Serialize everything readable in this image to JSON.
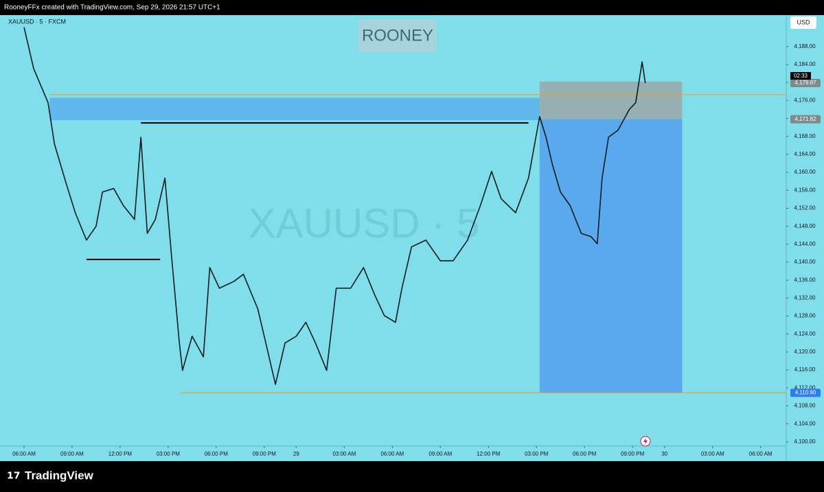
{
  "header": {
    "title": "RooneyFFx created with TradingView.com, Sep 29, 2026 21:57 UTC+1",
    "symbol": "XAUUSD · 5 · FXCM",
    "badge": "ROONEY",
    "watermark": "XAUUSD · 5",
    "currency": "USD",
    "logo": "TradingView"
  },
  "chart_data": {
    "type": "line",
    "color": "#0b1a1c",
    "x": [
      0,
      0.6,
      1.5,
      1.9,
      2.6,
      3.2,
      3.9,
      4.5,
      4.9,
      5.6,
      6.2,
      6.9,
      7.3,
      7.7,
      8.2,
      8.8,
      9.2,
      9.7,
      9.9,
      10.5,
      11.2,
      11.6,
      12.2,
      13.1,
      13.7,
      14.6,
      15.0,
      15.7,
      16.3,
      17.0,
      17.6,
      18.2,
      18.9,
      19.5,
      20.4,
      21.2,
      21.9,
      22.5,
      23.2,
      23.6,
      24.2,
      25.1,
      26.0,
      26.8,
      27.7,
      28.5,
      29.2,
      29.8,
      30.7,
      31.5,
      32.2,
      32.6,
      33.0,
      33.5,
      34.1,
      34.8,
      35.4,
      35.8,
      36.1,
      36.5,
      37.1,
      37.8,
      38.2,
      38.6,
      38.8
    ],
    "values": [
      4192.3,
      4183.1,
      4175.5,
      4166.3,
      4157.9,
      4151.0,
      4144.9,
      4148.0,
      4155.6,
      4156.4,
      4152.6,
      4149.5,
      4167.8,
      4146.4,
      4149.5,
      4158.7,
      4141.9,
      4122.0,
      4115.9,
      4123.5,
      4118.9,
      4138.8,
      4134.2,
      4135.7,
      4137.3,
      4129.6,
      4123.5,
      4112.8,
      4122.0,
      4123.5,
      4126.6,
      4122.0,
      4115.9,
      4134.2,
      4134.2,
      4138.8,
      4132.7,
      4128.1,
      4126.6,
      4134.2,
      4143.4,
      4144.9,
      4140.3,
      4140.3,
      4144.9,
      4152.6,
      4160.2,
      4154.1,
      4151.0,
      4158.7,
      4172.4,
      4167.8,
      4161.7,
      4155.6,
      4152.6,
      4146.4,
      4145.7,
      4144.1,
      4158.7,
      4167.8,
      4169.4,
      4174.0,
      4175.5,
      4184.6,
      4179.87
    ],
    "xlim": [
      -1.5,
      47.6
    ],
    "ylim": [
      4095.7,
      4195
    ],
    "xticks": [
      {
        "value": 0,
        "label": "06:00 AM"
      },
      {
        "value": 3,
        "label": "09:00 AM"
      },
      {
        "value": 6,
        "label": "12:00 PM"
      },
      {
        "value": 9,
        "label": "03:00 PM"
      },
      {
        "value": 12,
        "label": "06:00 PM"
      },
      {
        "value": 15,
        "label": "09:00 PM"
      },
      {
        "value": 17,
        "label": "29"
      },
      {
        "value": 20,
        "label": "03:00 AM"
      },
      {
        "value": 23,
        "label": "06:00 AM"
      },
      {
        "value": 26,
        "label": "09:00 AM"
      },
      {
        "value": 29,
        "label": "12:00 PM"
      },
      {
        "value": 32,
        "label": "03:00 PM"
      },
      {
        "value": 35,
        "label": "06:00 PM"
      },
      {
        "value": 38,
        "label": "09:00 PM"
      },
      {
        "value": 40,
        "label": "30"
      },
      {
        "value": 43,
        "label": "03:00 AM"
      },
      {
        "value": 46,
        "label": "06:00 AM"
      }
    ],
    "yticks": [
      {
        "value": 4100,
        "label": "4,100.00"
      },
      {
        "value": 4104,
        "label": "4,104.00"
      },
      {
        "value": 4108,
        "label": "4,108.00"
      },
      {
        "value": 4112,
        "label": "4,112.00"
      },
      {
        "value": 4116,
        "label": "4,116.00"
      },
      {
        "value": 4120,
        "label": "4,120.00"
      },
      {
        "value": 4124,
        "label": "4,124.00"
      },
      {
        "value": 4128,
        "label": "4,128.00"
      },
      {
        "value": 4132,
        "label": "4,132.00"
      },
      {
        "value": 4136,
        "label": "4,136.00"
      },
      {
        "value": 4140,
        "label": "4,140.00"
      },
      {
        "value": 4144,
        "label": "4,144.00"
      },
      {
        "value": 4148,
        "label": "4,148.00"
      },
      {
        "value": 4152,
        "label": "4,152.00"
      },
      {
        "value": 4156,
        "label": "4,156.00"
      },
      {
        "value": 4160,
        "label": "4,160.00"
      },
      {
        "value": 4164,
        "label": "4,164.00"
      },
      {
        "value": 4168,
        "label": "4,168.00"
      },
      {
        "value": 4172,
        "label": "4,172.00"
      },
      {
        "value": 4176,
        "label": "4,176.00"
      },
      {
        "value": 4180,
        "label": "4,180.00"
      },
      {
        "value": 4184,
        "label": "4,184.00"
      },
      {
        "value": 4188,
        "label": "4,188.00"
      }
    ],
    "zone": {
      "x0": 1.6,
      "x1": 32.2,
      "y0": 4171.6,
      "y1": 4176.6,
      "color": "#5ab0ee"
    },
    "levels": [
      {
        "value": 4177.3,
        "x0": 1.6,
        "color": "#f0a030"
      },
      {
        "value": 4110.9,
        "x0": 9.8,
        "color": "#f0a030"
      }
    ],
    "hlines": [
      {
        "value": 4171.0,
        "x0": 7.3,
        "x1": 31.5
      },
      {
        "value": 4140.6,
        "x0": 3.9,
        "x1": 8.5
      }
    ],
    "position": {
      "x0": 32.2,
      "x1": 41.1,
      "stop": 4180.2,
      "entry": 4171.82,
      "entry_label": "4,171.82",
      "target": 4110.9,
      "target_label": "4,110.90"
    },
    "last_price": {
      "value": 4179.87,
      "label": "4,179.87",
      "countdown": "02:33"
    }
  }
}
